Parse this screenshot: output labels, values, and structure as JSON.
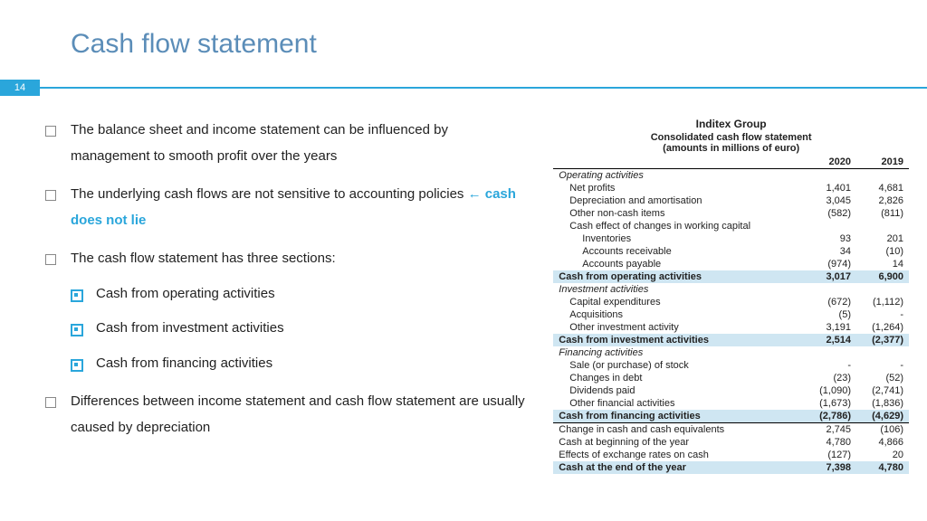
{
  "page": {
    "title": "Cash flow statement",
    "number": "14",
    "accent_color": "#2aa6db",
    "title_color": "#5b8db8"
  },
  "bullets": {
    "b1": "The balance sheet and income statement can be influenced by management to smooth profit over the years",
    "b2_pre": "The underlying cash flows are not sensitive to accounting policies ",
    "b2_arrow": "←",
    "b2_accent": " cash does not lie",
    "b3": "The cash flow statement has three sections:",
    "b3_sub1": "Cash from operating activities",
    "b3_sub2": "Cash from investment activities",
    "b3_sub3": "Cash from financing activities",
    "b4": "Differences between income statement and cash flow statement are usually caused by depreciation"
  },
  "table": {
    "company": "Inditex Group",
    "subtitle": "Consolidated cash flow statement",
    "units": "(amounts in millions of euro)",
    "year1": "2020",
    "year2": "2019",
    "highlight_color": "#cfe6f2",
    "rows": {
      "op_head": "Operating activities",
      "net_profits": {
        "l": "Net profits",
        "a": "1,401",
        "b": "4,681"
      },
      "dep": {
        "l": "Depreciation and amortisation",
        "a": "3,045",
        "b": "2,826"
      },
      "other_nc": {
        "l": "Other non-cash items",
        "a": "(582)",
        "b": "(811)"
      },
      "wc_head": "Cash effect of changes in working capital",
      "inv": {
        "l": "Inventories",
        "a": "93",
        "b": "201"
      },
      "ar": {
        "l": "Accounts receivable",
        "a": "34",
        "b": "(10)"
      },
      "ap": {
        "l": "Accounts payable",
        "a": "(974)",
        "b": "14"
      },
      "op_total": {
        "l": "Cash from operating activities",
        "a": "3,017",
        "b": "6,900"
      },
      "inv_head": "Investment activities",
      "capex": {
        "l": "Capital expenditures",
        "a": "(672)",
        "b": "(1,112)"
      },
      "acq": {
        "l": "Acquisitions",
        "a": "(5)",
        "b": "-"
      },
      "other_inv": {
        "l": "Other investment activity",
        "a": "3,191",
        "b": "(1,264)"
      },
      "inv_total": {
        "l": "Cash from investment activities",
        "a": "2,514",
        "b": "(2,377)"
      },
      "fin_head": "Financing activities",
      "stock": {
        "l": "Sale (or purchase) of stock",
        "a": "-",
        "b": "-"
      },
      "debt": {
        "l": "Changes in debt",
        "a": "(23)",
        "b": "(52)"
      },
      "div": {
        "l": "Dividends paid",
        "a": "(1,090)",
        "b": "(2,741)"
      },
      "other_fin": {
        "l": "Other financial activities",
        "a": "(1,673)",
        "b": "(1,836)"
      },
      "fin_total": {
        "l": "Cash from financing activities",
        "a": "(2,786)",
        "b": "(4,629)"
      },
      "change": {
        "l": "Change in cash and cash equivalents",
        "a": "2,745",
        "b": "(106)"
      },
      "begin": {
        "l": "Cash at beginning of the year",
        "a": "4,780",
        "b": "4,866"
      },
      "fx": {
        "l": "Effects of exchange rates on cash",
        "a": "(127)",
        "b": "20"
      },
      "end": {
        "l": "Cash at the end of the year",
        "a": "7,398",
        "b": "4,780"
      }
    }
  }
}
